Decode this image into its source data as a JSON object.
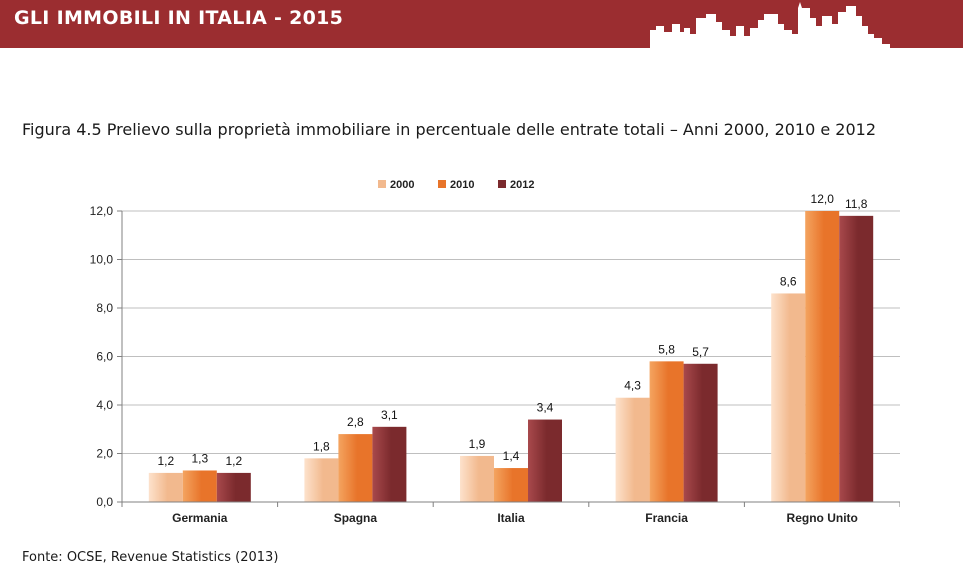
{
  "header": {
    "title": "GLI IMMOBILI IN ITALIA - 2015",
    "band_color": "#9b2d30"
  },
  "figure": {
    "title": "Figura 4.5 Prelievo sulla proprietà immobiliare in percentuale delle entrate totali – Anni 2000, 2010 e 2012",
    "source": "Fonte: OCSE, Revenue Statistics (2013)"
  },
  "chart_data": {
    "type": "bar",
    "categories": [
      "Germania",
      "Spagna",
      "Italia",
      "Francia",
      "Regno Unito"
    ],
    "series": [
      {
        "name": "2000",
        "values": [
          1.2,
          1.8,
          1.9,
          4.3,
          8.6
        ],
        "value_labels": [
          "1,2",
          "1,8",
          "1,9",
          "4,3",
          "8,6"
        ],
        "color": "#f2b98e",
        "color_light": "#fde2cc"
      },
      {
        "name": "2010",
        "values": [
          1.3,
          2.8,
          1.4,
          5.8,
          12.0
        ],
        "value_labels": [
          "1,3",
          "2,8",
          "1,4",
          "5,8",
          "12,0"
        ],
        "color": "#e8742a",
        "color_light": "#f4a460"
      },
      {
        "name": "2012",
        "values": [
          1.2,
          3.1,
          3.4,
          5.7,
          11.8
        ],
        "value_labels": [
          "1,2",
          "3,1",
          "3,4",
          "5,7",
          "11,8"
        ],
        "color": "#7b2a2d",
        "color_light": "#a8494c"
      }
    ],
    "ylim": [
      0,
      12
    ],
    "yticks": [
      0,
      2,
      4,
      6,
      8,
      10,
      12
    ],
    "ytick_labels": [
      "0,0",
      "2,0",
      "4,0",
      "6,0",
      "8,0",
      "10,0",
      "12,0"
    ],
    "grid": true,
    "legend_position": "top"
  }
}
